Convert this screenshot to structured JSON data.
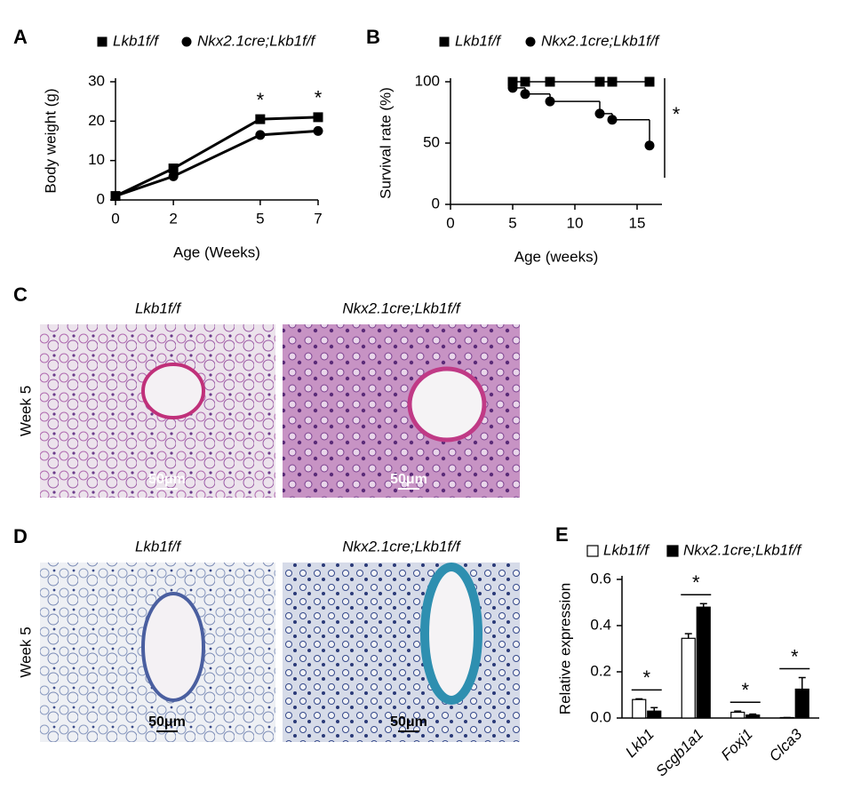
{
  "chart_data": [
    {
      "type": "line",
      "panel": "A",
      "xlabel": "Age (Weeks)",
      "ylabel": "Body weight (g)",
      "x": [
        0,
        2,
        5,
        7
      ],
      "xlim": [
        0,
        7
      ],
      "xticks": [
        0,
        2,
        5,
        7
      ],
      "ylim": [
        0,
        30
      ],
      "yticks": [
        0,
        10,
        20,
        30
      ],
      "series": [
        {
          "name": "Lkb1f/f",
          "marker": "square",
          "color": "#000000",
          "values": [
            1,
            8,
            20.5,
            21
          ]
        },
        {
          "name": "Nkx2.1cre;Lkb1f/f",
          "marker": "circle",
          "color": "#000000",
          "values": [
            1,
            6,
            16.5,
            17.5
          ]
        }
      ],
      "significance": [
        null,
        null,
        "*",
        "*"
      ]
    },
    {
      "type": "step",
      "panel": "B",
      "xlabel": "Age (weeks)",
      "ylabel": "Survival rate (%)",
      "x": [
        5,
        6,
        8,
        12,
        13,
        16
      ],
      "xlim": [
        0,
        17
      ],
      "xticks": [
        0,
        5,
        10,
        15
      ],
      "ylim": [
        0,
        100
      ],
      "yticks": [
        0,
        50,
        100
      ],
      "series": [
        {
          "name": "Lkb1f/f",
          "marker": "square",
          "color": "#000000",
          "values": [
            100,
            100,
            100,
            100,
            100,
            100
          ]
        },
        {
          "name": "Nkx2.1cre;Lkb1f/f",
          "marker": "circle",
          "color": "#000000",
          "values": [
            95,
            90,
            84,
            74,
            69,
            48
          ]
        }
      ],
      "annotation": "*"
    },
    {
      "type": "bar",
      "panel": "E",
      "ylabel": "Relative expression",
      "categories": [
        "Lkb1",
        "Scgb1a1",
        "Foxj1",
        "Clca3"
      ],
      "ylim": [
        0,
        0.6
      ],
      "yticks": [
        {
          "value": 0,
          "label": "0.0"
        },
        0.2,
        0.4,
        0.6
      ],
      "series": [
        {
          "name": "Lkb1f/f",
          "color": "#ffffff",
          "values": [
            0.08,
            0.345,
            0.025,
            0.002
          ],
          "errors": [
            0.003,
            0.02,
            0.005,
            0
          ]
        },
        {
          "name": "Nkx2.1cre;Lkb1f/f",
          "color": "#000000",
          "values": [
            0.03,
            0.48,
            0.013,
            0.125
          ],
          "errors": [
            0.015,
            0.015,
            0.004,
            0.05
          ]
        }
      ],
      "significance": [
        "*",
        "*",
        "*",
        "*"
      ]
    }
  ],
  "histology": [
    {
      "panel": "C",
      "row_label": "Week 5",
      "stain": "he",
      "images": [
        {
          "label": "Lkb1f/f",
          "scale_bar": "50μm"
        },
        {
          "label": "Nkx2.1cre;Lkb1f/f",
          "scale_bar": "50μm"
        }
      ]
    },
    {
      "panel": "D",
      "row_label": "Week 5",
      "stain": "ab",
      "images": [
        {
          "label": "Lkb1f/f",
          "scale_bar": "50μm"
        },
        {
          "label": "Nkx2.1cre;Lkb1f/f",
          "scale_bar": "50μm"
        }
      ]
    }
  ]
}
